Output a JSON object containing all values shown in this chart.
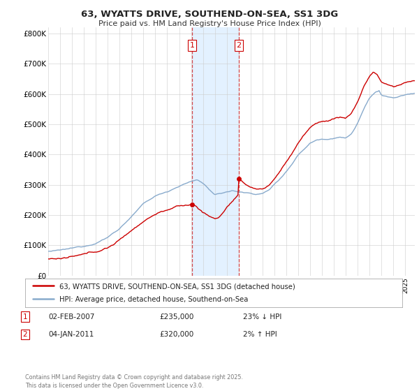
{
  "title": "63, WYATTS DRIVE, SOUTHEND-ON-SEA, SS1 3DG",
  "subtitle": "Price paid vs. HM Land Registry's House Price Index (HPI)",
  "ylim": [
    0,
    820000
  ],
  "yticks": [
    0,
    100000,
    200000,
    300000,
    400000,
    500000,
    600000,
    700000,
    800000
  ],
  "ytick_labels": [
    "£0",
    "£100K",
    "£200K",
    "£300K",
    "£400K",
    "£500K",
    "£600K",
    "£700K",
    "£800K"
  ],
  "background_color": "#ffffff",
  "grid_color": "#cccccc",
  "sale1_date": "02-FEB-2007",
  "sale1_price": 235000,
  "sale1_hpi_diff": "23% ↓ HPI",
  "sale2_date": "04-JAN-2011",
  "sale2_price": 320000,
  "sale2_hpi_diff": "2% ↑ HPI",
  "legend_line1": "63, WYATTS DRIVE, SOUTHEND-ON-SEA, SS1 3DG (detached house)",
  "legend_line2": "HPI: Average price, detached house, Southend-on-Sea",
  "footer": "Contains HM Land Registry data © Crown copyright and database right 2025.\nThis data is licensed under the Open Government Licence v3.0.",
  "line_red_color": "#cc0000",
  "line_blue_color": "#88aacc",
  "shade_color": "#ddeeff",
  "vline_color": "#cc0000",
  "sale1_x": 2007.08,
  "sale2_x": 2011.01,
  "xlim_left": 1995.0,
  "xlim_right": 2025.8
}
